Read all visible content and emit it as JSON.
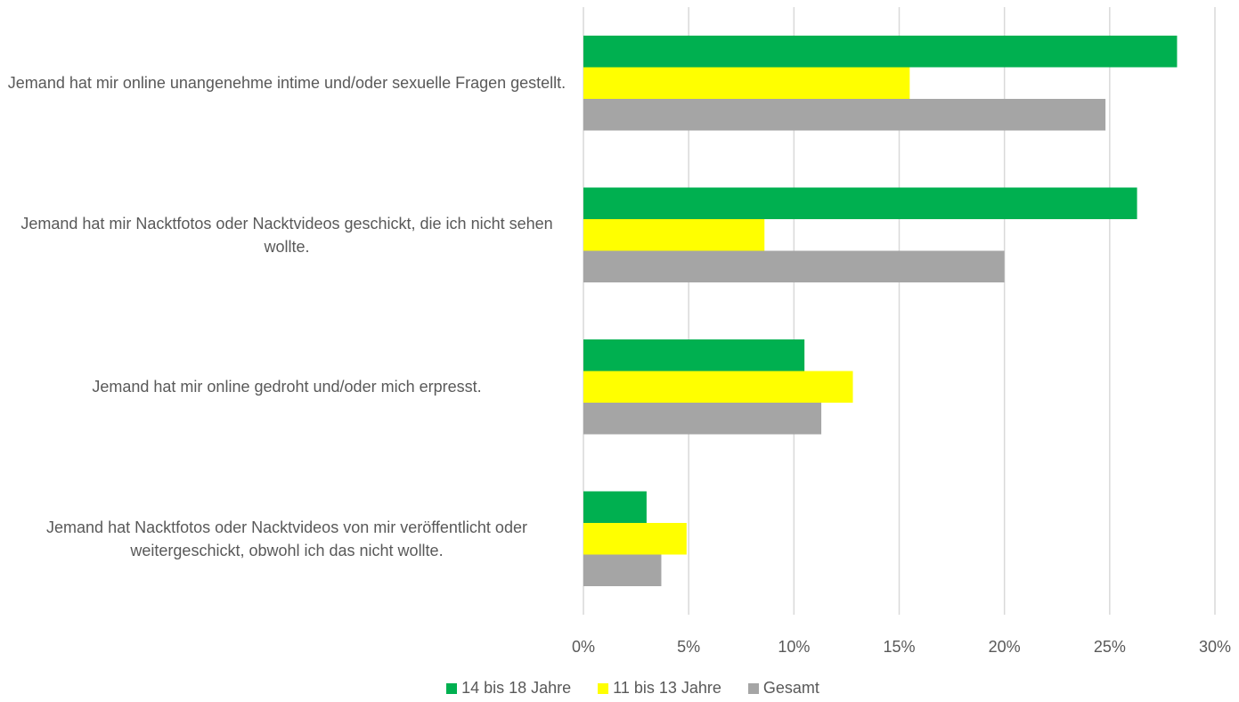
{
  "chart_data": {
    "type": "bar",
    "orientation": "horizontal",
    "categories": [
      "Jemand hat mir online unangenehme intime und/oder sexuelle Fragen gestellt.",
      "Jemand hat mir Nacktfotos oder Nacktvideos geschickt, die ich nicht sehen wollte.",
      "Jemand hat mir online gedroht und/oder mich erpresst.",
      "Jemand hat Nacktfotos oder Nacktvideos von mir veröffentlicht oder weitergeschickt, obwohl ich das nicht wollte."
    ],
    "series": [
      {
        "name": "14 bis 18 Jahre",
        "color": "#00b050",
        "values": [
          28.2,
          26.3,
          10.5,
          3.0
        ]
      },
      {
        "name": "11 bis 13 Jahre",
        "color": "#ffff00",
        "values": [
          15.5,
          8.6,
          12.8,
          4.9
        ]
      },
      {
        "name": "Gesamt",
        "color": "#a5a5a5",
        "values": [
          24.8,
          20.0,
          11.3,
          3.7
        ]
      }
    ],
    "xlim": [
      0,
      30
    ],
    "xticks": [
      {
        "value": 0,
        "label": "0%"
      },
      {
        "value": 5,
        "label": "5%"
      },
      {
        "value": 10,
        "label": "10%"
      },
      {
        "value": 15,
        "label": "15%"
      },
      {
        "value": 20,
        "label": "20%"
      },
      {
        "value": 25,
        "label": "25%"
      },
      {
        "value": 30,
        "label": "30%"
      }
    ],
    "grid": true,
    "legend": "bottom"
  }
}
